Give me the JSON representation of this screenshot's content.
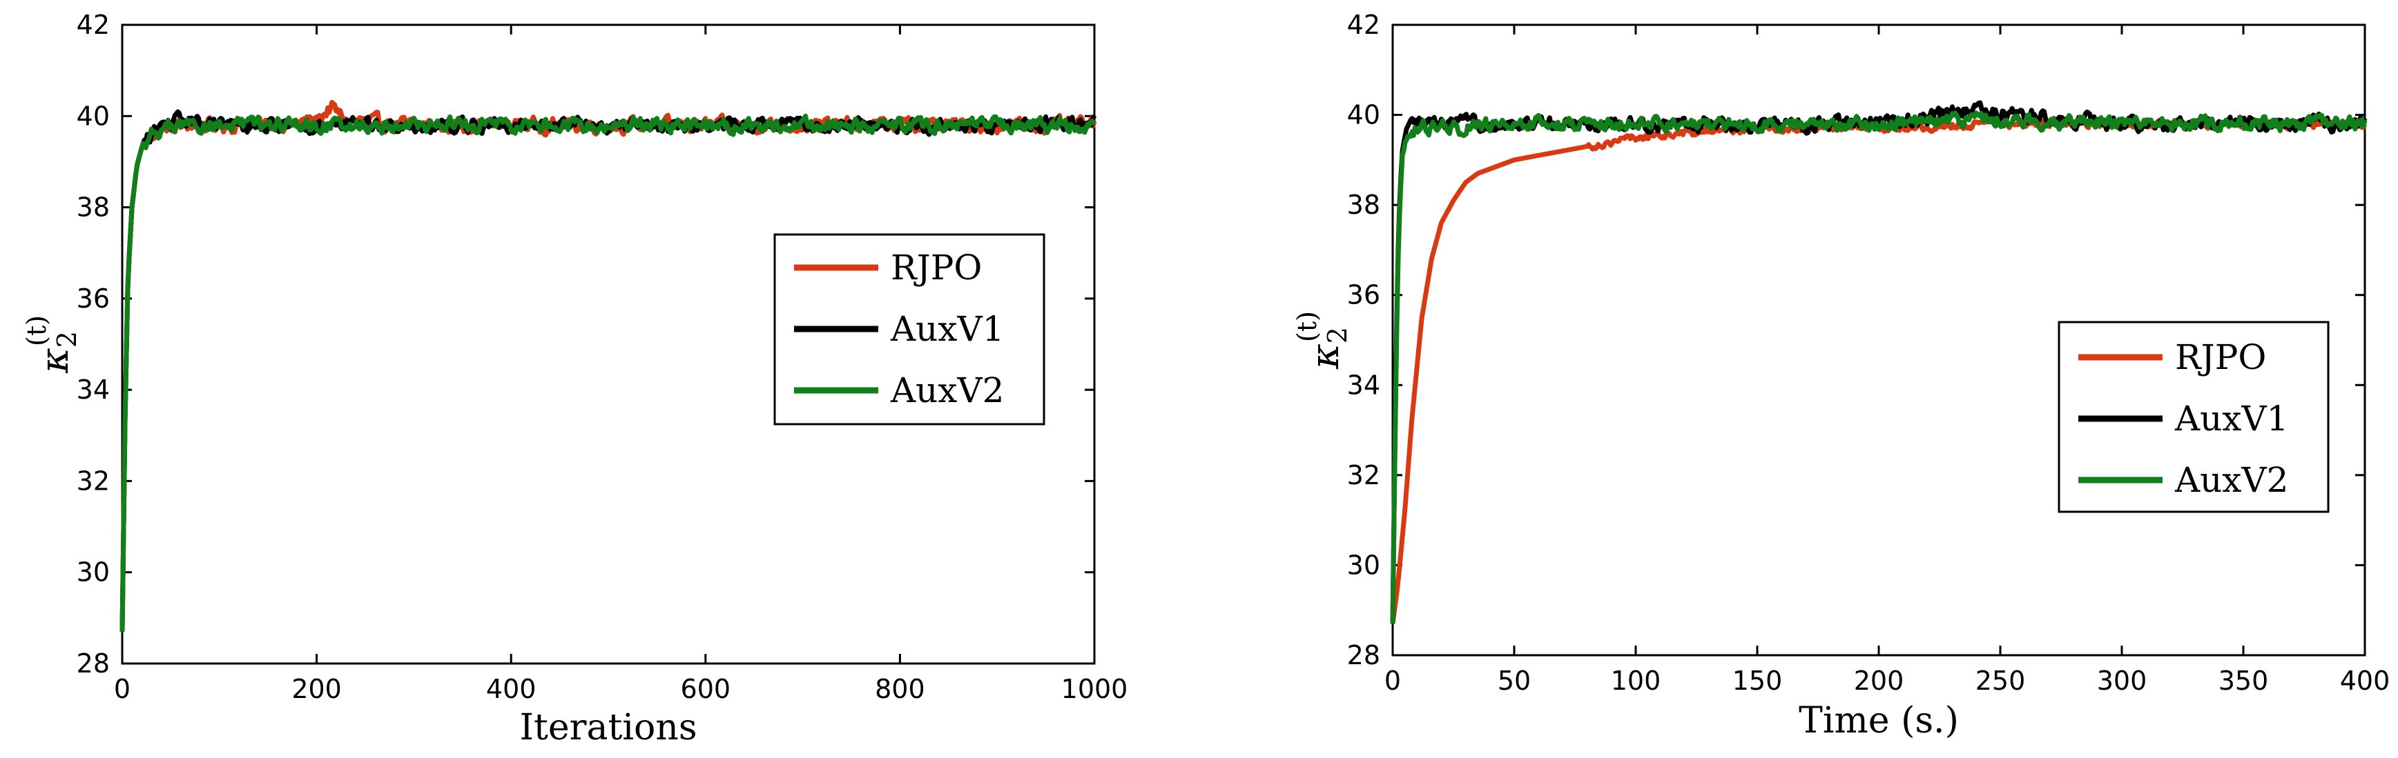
{
  "chart_data": [
    {
      "type": "line",
      "xlabel": "Iterations",
      "ylabel": "κ2(t)",
      "ylabel_symbol": "κ",
      "ylabel_sub": "2",
      "ylabel_sup": "(t)",
      "xlim": [
        0,
        1000
      ],
      "ylim": [
        28,
        42
      ],
      "xticks": [
        0,
        200,
        400,
        600,
        800,
        1000
      ],
      "yticks": [
        28,
        30,
        32,
        34,
        36,
        38,
        40,
        42
      ],
      "grid": false,
      "legend_position": "center-right",
      "series": [
        {
          "name": "RJPO",
          "color": "#d93a12",
          "x": [
            0,
            3,
            6,
            10,
            15,
            20,
            30,
            40,
            60,
            100,
            150,
            200,
            215,
            230,
            300,
            400,
            500,
            600,
            700,
            800,
            900,
            1000
          ],
          "values": [
            28.7,
            33.5,
            36.5,
            38.0,
            38.9,
            39.3,
            39.6,
            39.7,
            39.8,
            39.8,
            39.8,
            39.9,
            40.2,
            39.9,
            39.8,
            39.8,
            39.8,
            39.8,
            39.8,
            39.8,
            39.8,
            39.8
          ]
        },
        {
          "name": "AuxV1",
          "color": "#000000",
          "x": [
            0,
            3,
            6,
            10,
            15,
            20,
            30,
            40,
            60,
            100,
            150,
            200,
            300,
            400,
            500,
            600,
            700,
            800,
            900,
            1000
          ],
          "values": [
            28.7,
            33.5,
            36.5,
            38.0,
            38.9,
            39.3,
            39.6,
            39.8,
            39.9,
            39.8,
            39.8,
            39.8,
            39.8,
            39.8,
            39.8,
            39.8,
            39.8,
            39.8,
            39.8,
            39.9
          ]
        },
        {
          "name": "AuxV2",
          "color": "#11801a",
          "x": [
            0,
            3,
            6,
            10,
            15,
            20,
            30,
            40,
            60,
            100,
            150,
            200,
            300,
            400,
            500,
            600,
            700,
            800,
            900,
            1000
          ],
          "values": [
            28.7,
            33.5,
            36.5,
            38.0,
            38.9,
            39.3,
            39.6,
            39.7,
            39.8,
            39.8,
            39.8,
            39.8,
            39.8,
            39.8,
            39.8,
            39.8,
            39.8,
            39.8,
            39.8,
            39.8
          ]
        }
      ]
    },
    {
      "type": "line",
      "xlabel": "Time (s.)",
      "ylabel": "κ2(t)",
      "ylabel_symbol": "κ",
      "ylabel_sub": "2",
      "ylabel_sup": "(t)",
      "xlim": [
        0,
        400
      ],
      "ylim": [
        28,
        42
      ],
      "xticks": [
        0,
        50,
        100,
        150,
        200,
        250,
        300,
        350,
        400
      ],
      "yticks": [
        28,
        30,
        32,
        34,
        36,
        38,
        40,
        42
      ],
      "grid": false,
      "legend_position": "center-right",
      "series": [
        {
          "name": "RJPO",
          "color": "#d93a12",
          "x": [
            0,
            2,
            5,
            8,
            12,
            16,
            20,
            25,
            30,
            35,
            40,
            50,
            60,
            70,
            80,
            90,
            100,
            120,
            150,
            200,
            250,
            300,
            350,
            400
          ],
          "values": [
            28.7,
            29.5,
            31.2,
            33.3,
            35.5,
            36.8,
            37.6,
            38.1,
            38.5,
            38.7,
            38.8,
            39.0,
            39.1,
            39.2,
            39.3,
            39.4,
            39.5,
            39.6,
            39.7,
            39.7,
            39.8,
            39.8,
            39.8,
            39.8
          ]
        },
        {
          "name": "AuxV1",
          "color": "#000000",
          "x": [
            0,
            1,
            2,
            3,
            4,
            6,
            8,
            10,
            20,
            50,
            100,
            150,
            200,
            240,
            300,
            350,
            400
          ],
          "values": [
            28.7,
            33.0,
            36.5,
            38.3,
            39.2,
            39.6,
            39.8,
            39.8,
            39.8,
            39.8,
            39.8,
            39.8,
            39.8,
            40.1,
            39.8,
            39.8,
            39.8
          ]
        },
        {
          "name": "AuxV2",
          "color": "#11801a",
          "x": [
            0,
            1,
            2,
            3,
            4,
            6,
            8,
            10,
            20,
            50,
            100,
            150,
            200,
            240,
            300,
            350,
            400
          ],
          "values": [
            28.7,
            32.8,
            36.3,
            38.1,
            39.1,
            39.5,
            39.7,
            39.7,
            39.7,
            39.8,
            39.8,
            39.8,
            39.8,
            39.9,
            39.8,
            39.8,
            39.8
          ]
        }
      ]
    }
  ]
}
